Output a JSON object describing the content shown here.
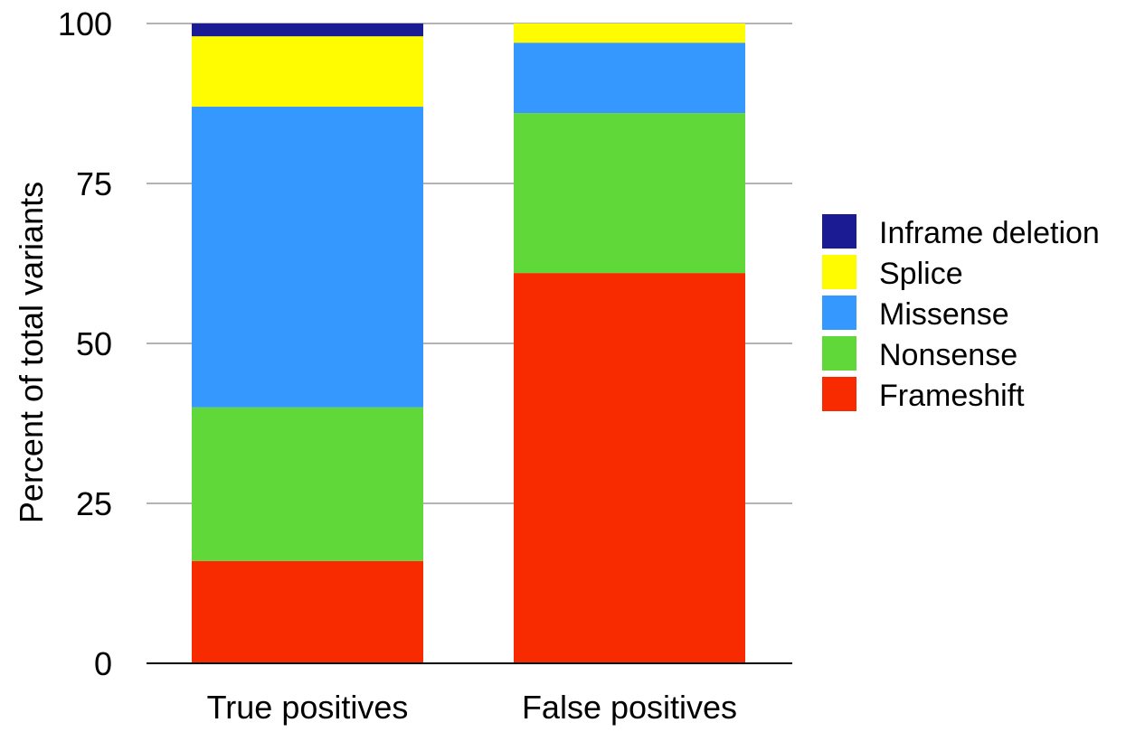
{
  "chart_data": {
    "type": "bar",
    "stacked": true,
    "title": "",
    "xlabel": "",
    "ylabel": "Percent of total variants",
    "ylim": [
      0,
      100
    ],
    "yticks": [
      0,
      25,
      50,
      75,
      100
    ],
    "grid": "horizontal",
    "legend_position": "right",
    "categories": [
      "True positives",
      "False positives"
    ],
    "series": [
      {
        "name": "Frameshift",
        "color": "#F72A00",
        "values": [
          16,
          61
        ]
      },
      {
        "name": "Nonsense",
        "color": "#61D83A",
        "values": [
          24,
          25
        ]
      },
      {
        "name": "Missense",
        "color": "#3598FE",
        "values": [
          47,
          11
        ]
      },
      {
        "name": "Splice",
        "color": "#FFFB00",
        "values": [
          11,
          3
        ]
      },
      {
        "name": "Inframe deletion",
        "color": "#1B1B93",
        "values": [
          2,
          0
        ]
      }
    ],
    "legend_order": [
      "Inframe deletion",
      "Splice",
      "Missense",
      "Nonsense",
      "Frameshift"
    ]
  }
}
